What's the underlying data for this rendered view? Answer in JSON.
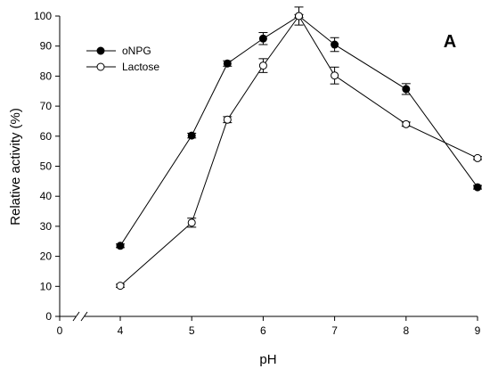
{
  "chart_data": {
    "type": "line",
    "panel_label": "A",
    "xlabel": "pH",
    "ylabel": "Relative activity (%)",
    "xlim": [
      0,
      9
    ],
    "ylim": [
      0,
      100
    ],
    "axis_break": true,
    "x_ticks": [
      0,
      4,
      5,
      6,
      7,
      8,
      9
    ],
    "y_ticks": [
      0,
      10,
      20,
      30,
      40,
      50,
      60,
      70,
      80,
      90,
      100
    ],
    "grid": false,
    "legend_position": "top-left",
    "series": [
      {
        "name": "oNPG",
        "marker": "filled-circle",
        "x": [
          4,
          5,
          5.5,
          6,
          6.5,
          7,
          8,
          9
        ],
        "y": [
          23.5,
          60.2,
          84.2,
          92.5,
          100,
          90.5,
          75.7,
          43.0
        ],
        "err": [
          0.6,
          0.8,
          0.9,
          2.0,
          0.5,
          2.3,
          1.8,
          0.6
        ]
      },
      {
        "name": "Lactose",
        "marker": "open-circle",
        "x": [
          4,
          5,
          5.5,
          6,
          6.5,
          7,
          8,
          9
        ],
        "y": [
          10.2,
          31.2,
          65.5,
          83.5,
          100,
          80.2,
          64.0,
          52.7
        ],
        "err": [
          0.5,
          1.5,
          1.0,
          2.3,
          3.0,
          2.8,
          0.7,
          0.5
        ]
      }
    ]
  }
}
